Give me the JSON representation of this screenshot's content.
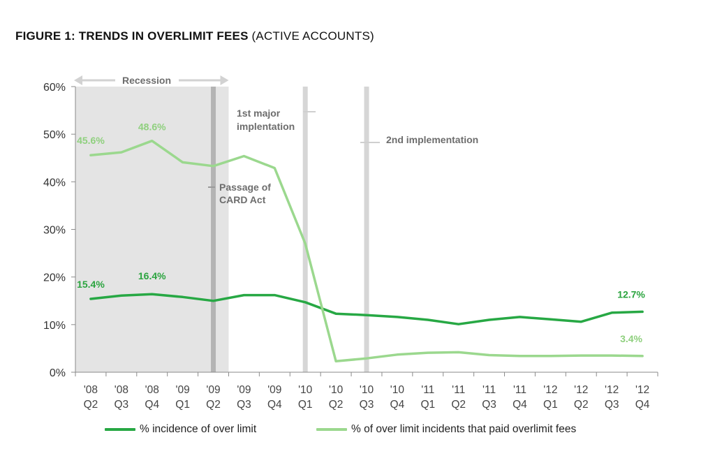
{
  "title": {
    "main": "FIGURE 1:   TRENDS IN OVERLIMIT FEES",
    "sub": "(ACTIVE ACCOUNTS)"
  },
  "chart_data": {
    "type": "line",
    "categories": [
      [
        "'08",
        "Q2"
      ],
      [
        "'08",
        "Q3"
      ],
      [
        "'08",
        "Q4"
      ],
      [
        "'09",
        "Q1"
      ],
      [
        "'09",
        "Q2"
      ],
      [
        "'09",
        "Q3"
      ],
      [
        "'09",
        "Q4"
      ],
      [
        "'10",
        "Q1"
      ],
      [
        "'10",
        "Q2"
      ],
      [
        "'10",
        "Q3"
      ],
      [
        "'10",
        "Q4"
      ],
      [
        "'11",
        "Q1"
      ],
      [
        "'11",
        "Q2"
      ],
      [
        "'11",
        "Q3"
      ],
      [
        "'11",
        "Q4"
      ],
      [
        "'12",
        "Q1"
      ],
      [
        "'12",
        "Q2"
      ],
      [
        "'12",
        "Q3"
      ],
      [
        "'12",
        "Q4"
      ]
    ],
    "ylim": [
      0,
      60
    ],
    "yticks": [
      "0%",
      "10%",
      "20%",
      "30%",
      "40%",
      "50%",
      "60%"
    ],
    "series": [
      {
        "name": "% incidence of over limit",
        "color": "#27a844",
        "values": [
          15.4,
          16.1,
          16.4,
          15.8,
          15.0,
          16.2,
          16.2,
          14.7,
          12.3,
          12.0,
          11.6,
          11.0,
          10.1,
          11.0,
          11.6,
          11.1,
          10.6,
          12.5,
          12.7
        ]
      },
      {
        "name": "% of over limit incidents that paid overlimit fees",
        "color": "#9bd88e",
        "values": [
          45.6,
          46.2,
          48.6,
          44.1,
          43.3,
          45.4,
          42.9,
          27.0,
          2.3,
          2.9,
          3.7,
          4.1,
          4.2,
          3.6,
          3.4,
          3.4,
          3.5,
          3.5,
          3.4
        ]
      }
    ],
    "data_labels": [
      {
        "series": 1,
        "index": 0,
        "text": "45.6%"
      },
      {
        "series": 1,
        "index": 2,
        "text": "48.6%"
      },
      {
        "series": 0,
        "index": 0,
        "text": "15.4%"
      },
      {
        "series": 0,
        "index": 2,
        "text": "16.4%"
      },
      {
        "series": 0,
        "index": 18,
        "text": "12.7%"
      },
      {
        "series": 1,
        "index": 18,
        "text": "3.4%"
      }
    ],
    "annotations": {
      "recession": "Recession",
      "card_act": [
        "Passage of",
        "CARD Act"
      ],
      "first_impl": [
        "1st major",
        "implentation"
      ],
      "second_impl": "2nd implementation"
    },
    "grid": false,
    "legend_position": "bottom"
  }
}
